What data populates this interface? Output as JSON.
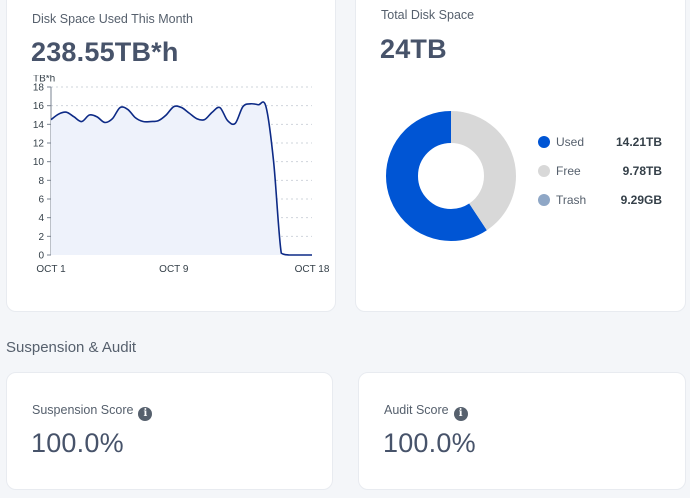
{
  "disk_used": {
    "title": "Disk Space Used This Month",
    "value": "238.55TB*h"
  },
  "total_disk": {
    "title": "Total Disk Space",
    "value": "24TB",
    "legend": [
      {
        "label": "Used",
        "value": "14.21TB",
        "color": "#0055d4"
      },
      {
        "label": "Free",
        "value": "9.78TB",
        "color": "#d8d8d8"
      },
      {
        "label": "Trash",
        "value": "9.29GB",
        "color": "#8fa7c6"
      }
    ]
  },
  "section": {
    "title": "Suspension & Audit"
  },
  "suspension": {
    "title": "Suspension Score",
    "value": "100.0%",
    "icon": "info-icon"
  },
  "audit": {
    "title": "Audit Score",
    "value": "100.0%",
    "icon": "info-icon"
  },
  "chart_data": [
    {
      "type": "area",
      "ylabel": "TB*h",
      "ylim": [
        0,
        18
      ],
      "yticks": [
        0,
        2,
        4,
        6,
        8,
        10,
        12,
        14,
        16,
        18
      ],
      "xtick_labels": [
        "OCT 1",
        "OCT 9",
        "OCT 18"
      ],
      "x": [
        1,
        1.5,
        2,
        2.5,
        3,
        3.5,
        4,
        4.5,
        5,
        5.5,
        6,
        6.5,
        7,
        7.5,
        8,
        8.5,
        9,
        9.5,
        10,
        10.5,
        11,
        11.5,
        12,
        12.5,
        13,
        13.5,
        14,
        14.5,
        15,
        15.5,
        16,
        16.5,
        17,
        17.5,
        18
      ],
      "values": [
        14.5,
        15.1,
        15.3,
        14.8,
        14.3,
        15.0,
        14.8,
        14.2,
        14.6,
        15.8,
        15.6,
        14.7,
        14.3,
        14.3,
        14.4,
        15.0,
        15.9,
        15.8,
        15.2,
        14.6,
        14.5,
        15.3,
        15.8,
        14.4,
        14.1,
        15.9,
        16.2,
        16.1,
        15.9,
        10.0,
        0.2,
        0.0,
        0.0,
        0.0,
        0.0
      ],
      "grid": true,
      "line_color": "#0d2a86",
      "fill_color": "#eef2fb"
    },
    {
      "type": "pie",
      "donut": true,
      "labels": [
        "Used",
        "Free",
        "Trash"
      ],
      "values": [
        14.21,
        9.78,
        0.00929
      ],
      "units": "TB",
      "colors": [
        "#0055d4",
        "#d8d8d8",
        "#8fa7c6"
      ]
    }
  ]
}
